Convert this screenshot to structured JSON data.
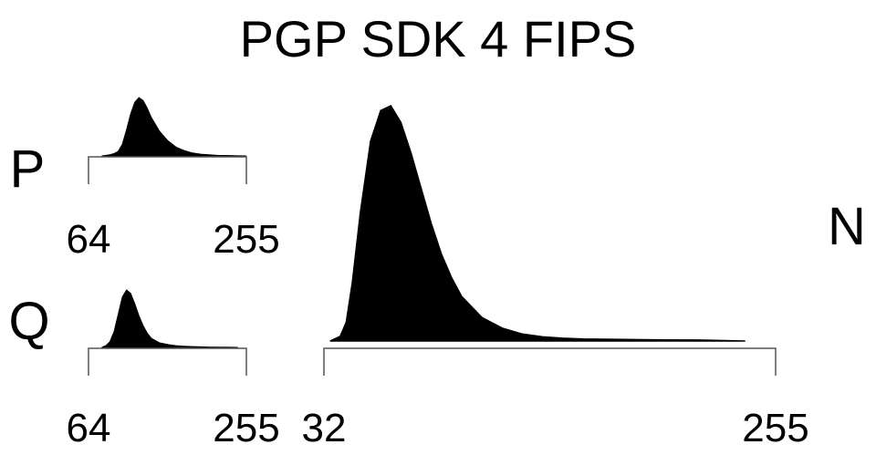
{
  "chart_data": {
    "type": "area",
    "title": "PGP SDK 4 FIPS",
    "panels": [
      {
        "id": "P",
        "label": "P",
        "xlim": [
          64,
          255
        ],
        "tick_labels": [
          "64",
          "255"
        ],
        "x": [
          80,
          85,
          90,
          95,
          100,
          105,
          110,
          115,
          120,
          125,
          130,
          135,
          140,
          150,
          160,
          170,
          180,
          190,
          200,
          210,
          220,
          240,
          255
        ],
        "y": [
          0.0,
          0.01,
          0.02,
          0.04,
          0.08,
          0.2,
          0.45,
          0.72,
          0.92,
          1.0,
          0.95,
          0.82,
          0.66,
          0.42,
          0.26,
          0.15,
          0.09,
          0.05,
          0.03,
          0.02,
          0.01,
          0.005,
          0.0
        ]
      },
      {
        "id": "Q",
        "label": "Q",
        "xlim": [
          64,
          255
        ],
        "tick_labels": [
          "64",
          "255"
        ],
        "x": [
          80,
          85,
          90,
          95,
          100,
          105,
          110,
          115,
          120,
          125,
          130,
          135,
          140,
          150,
          160,
          170,
          180,
          190,
          200,
          210,
          220,
          230,
          245
        ],
        "y": [
          0.0,
          0.03,
          0.1,
          0.28,
          0.58,
          0.88,
          1.0,
          0.94,
          0.76,
          0.55,
          0.38,
          0.25,
          0.16,
          0.08,
          0.05,
          0.03,
          0.02,
          0.015,
          0.01,
          0.007,
          0.005,
          0.003,
          0.0
        ]
      },
      {
        "id": "N",
        "label": "N",
        "xlim": [
          32,
          255
        ],
        "tick_labels": [
          "32",
          "255"
        ],
        "x": [
          35,
          40,
          43,
          46,
          50,
          55,
          60,
          65,
          70,
          75,
          80,
          85,
          90,
          95,
          100,
          110,
          120,
          130,
          140,
          150,
          160,
          180,
          200,
          220,
          240
        ],
        "y": [
          0.0,
          0.02,
          0.08,
          0.25,
          0.55,
          0.85,
          0.98,
          1.0,
          0.93,
          0.8,
          0.65,
          0.5,
          0.37,
          0.27,
          0.19,
          0.1,
          0.055,
          0.03,
          0.018,
          0.012,
          0.009,
          0.007,
          0.005,
          0.004,
          0.0
        ]
      }
    ]
  }
}
